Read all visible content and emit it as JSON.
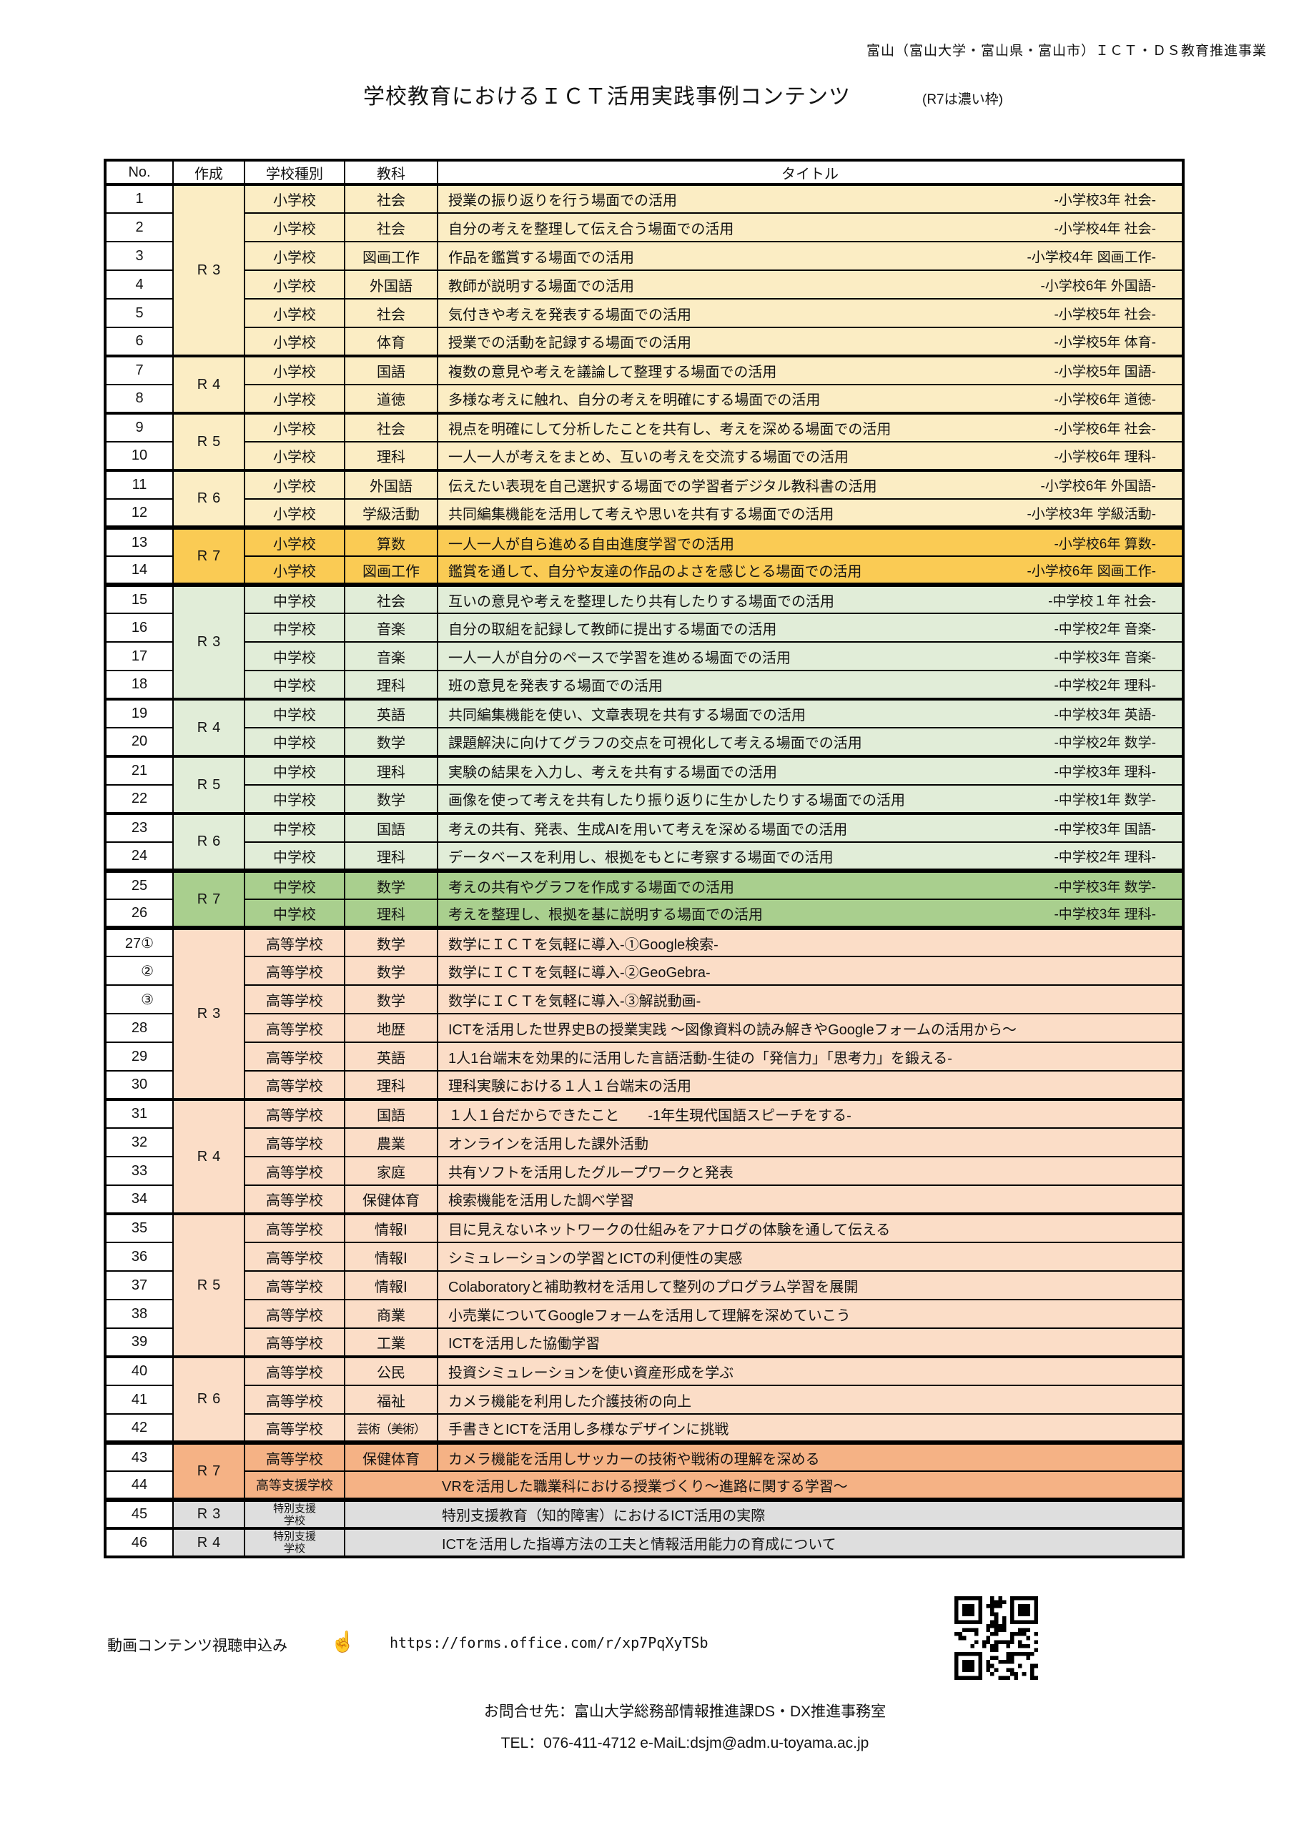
{
  "header": {
    "project": "富山（富山大学・富山県・富山市）ＩＣＴ・ＤＳ教育推進事業",
    "title": "学校教育におけるＩＣＴ活用実践事例コンテンツ",
    "note": "(R7は濃い枠)"
  },
  "palette": {
    "e1": "#FBEDC4",
    "e2": "#FACB54",
    "j1": "#E1EDD8",
    "j2": "#A9CF8E",
    "h1": "#FBDDC7",
    "h2": "#F5B285",
    "s1": "#DEDEDE",
    "border": "#000000",
    "text": "#141414"
  },
  "table": {
    "columns": [
      "No.",
      "作成",
      "学校種別",
      "教科",
      "タイトル"
    ],
    "rows": [
      {
        "no": "1",
        "era": "R3",
        "span": 6,
        "school": "小学校",
        "subject": "社会",
        "title": "授業の振り返りを行う場面での活用",
        "tag": "-小学校3年 社会-",
        "shade": "e1"
      },
      {
        "no": "2",
        "school": "小学校",
        "subject": "社会",
        "title": "自分の考えを整理して伝え合う場面での活用",
        "tag": "-小学校4年 社会-",
        "shade": "e1"
      },
      {
        "no": "3",
        "school": "小学校",
        "subject": "図画工作",
        "title": "作品を鑑賞する場面での活用",
        "tag": "-小学校4年 図画工作-",
        "shade": "e1"
      },
      {
        "no": "4",
        "school": "小学校",
        "subject": "外国語",
        "title": "教師が説明する場面での活用",
        "tag": "-小学校6年 外国語-",
        "shade": "e1"
      },
      {
        "no": "5",
        "school": "小学校",
        "subject": "社会",
        "title": "気付きや考えを発表する場面での活用",
        "tag": "-小学校5年 社会-",
        "shade": "e1"
      },
      {
        "no": "6",
        "school": "小学校",
        "subject": "体育",
        "title": "授業での活動を記録する場面での活用",
        "tag": "-小学校5年 体育-",
        "shade": "e1"
      },
      {
        "no": "7",
        "era": "R4",
        "span": 2,
        "school": "小学校",
        "subject": "国語",
        "title": "複数の意見や考えを議論して整理する場面での活用",
        "tag": "-小学校5年 国語-",
        "shade": "e1",
        "top": "g"
      },
      {
        "no": "8",
        "school": "小学校",
        "subject": "道徳",
        "title": "多様な考えに触れ、自分の考えを明確にする場面での活用",
        "tag": "-小学校6年 道徳-",
        "shade": "e1"
      },
      {
        "no": "9",
        "era": "R5",
        "span": 2,
        "school": "小学校",
        "subject": "社会",
        "title": "視点を明確にして分析したことを共有し、考えを深める場面での活用",
        "tag": "-小学校6年 社会-",
        "shade": "e1",
        "top": "g"
      },
      {
        "no": "10",
        "school": "小学校",
        "subject": "理科",
        "title": "一人一人が考えをまとめ、互いの考えを交流する場面での活用",
        "tag": "-小学校6年 理科-",
        "shade": "e1"
      },
      {
        "no": "11",
        "era": "R6",
        "span": 2,
        "school": "小学校",
        "subject": "外国語",
        "title": "伝えたい表現を自己選択する場面での学習者デジタル教科書の活用",
        "tag": "-小学校6年 外国語-",
        "shade": "e1",
        "top": "g"
      },
      {
        "no": "12",
        "school": "小学校",
        "subject": "学級活動",
        "title": "共同編集機能を活用して考えや思いを共有する場面での活用",
        "tag": "-小学校3年 学級活動-",
        "shade": "e1"
      },
      {
        "no": "13",
        "era": "R7",
        "span": 2,
        "school": "小学校",
        "subject": "算数",
        "title": "一人一人が自ら進める自由進度学習での活用",
        "tag": "-小学校6年 算数-",
        "shade": "e2",
        "top": "G"
      },
      {
        "no": "14",
        "school": "小学校",
        "subject": "図画工作",
        "title": "鑑賞を通して、自分や友達の作品のよさを感じとる場面での活用",
        "tag": "-小学校6年 図画工作-",
        "shade": "e2"
      },
      {
        "no": "15",
        "era": "R3",
        "span": 4,
        "school": "中学校",
        "subject": "社会",
        "title": "互いの意見や考えを整理したり共有したりする場面での活用",
        "tag": "-中学校１年 社会-",
        "shade": "j1",
        "top": "G"
      },
      {
        "no": "16",
        "school": "中学校",
        "subject": "音楽",
        "title": "自分の取組を記録して教師に提出する場面での活用",
        "tag": "-中学校2年 音楽-",
        "shade": "j1"
      },
      {
        "no": "17",
        "school": "中学校",
        "subject": "音楽",
        "title": "一人一人が自分のペースで学習を進める場面での活用",
        "tag": "-中学校3年 音楽-",
        "shade": "j1"
      },
      {
        "no": "18",
        "school": "中学校",
        "subject": "理科",
        "title": "班の意見を発表する場面での活用",
        "tag": "-中学校2年 理科-",
        "shade": "j1"
      },
      {
        "no": "19",
        "era": "R4",
        "span": 2,
        "school": "中学校",
        "subject": "英語",
        "title": "共同編集機能を使い、文章表現を共有する場面での活用",
        "tag": "-中学校3年 英語-",
        "shade": "j1",
        "top": "g"
      },
      {
        "no": "20",
        "school": "中学校",
        "subject": "数学",
        "title": "課題解決に向けてグラフの交点を可視化して考える場面での活用",
        "tag": "-中学校2年 数学-",
        "shade": "j1"
      },
      {
        "no": "21",
        "era": "R5",
        "span": 2,
        "school": "中学校",
        "subject": "理科",
        "title": "実験の結果を入力し、考えを共有する場面での活用",
        "tag": "-中学校3年 理科-",
        "shade": "j1",
        "top": "g"
      },
      {
        "no": "22",
        "school": "中学校",
        "subject": "数学",
        "title": "画像を使って考えを共有したり振り返りに生かしたりする場面での活用",
        "tag": "-中学校1年 数学-",
        "shade": "j1"
      },
      {
        "no": "23",
        "era": "R6",
        "span": 2,
        "school": "中学校",
        "subject": "国語",
        "title": "考えの共有、発表、生成AIを用いて考えを深める場面での活用",
        "tag": "-中学校3年 国語-",
        "shade": "j1",
        "top": "g"
      },
      {
        "no": "24",
        "school": "中学校",
        "subject": "理科",
        "title": "データベースを利用し、根拠をもとに考察する場面での活用",
        "tag": "-中学校2年 理科-",
        "shade": "j1"
      },
      {
        "no": "25",
        "era": "R7",
        "span": 2,
        "school": "中学校",
        "subject": "数学",
        "title": "考えの共有やグラフを作成する場面での活用",
        "tag": "-中学校3年 数学-",
        "shade": "j2",
        "top": "G"
      },
      {
        "no": "26",
        "school": "中学校",
        "subject": "理科",
        "title": "考えを整理し、根拠を基に説明する場面での活用",
        "tag": "-中学校3年 理科-",
        "shade": "j2"
      },
      {
        "no": "27①",
        "era": "R3",
        "span": 6,
        "school": "高等学校",
        "subject": "数学",
        "title": "数学にＩＣＴを気軽に導入-①Google検索-",
        "shade": "h1",
        "top": "G"
      },
      {
        "no": "②",
        "noAlign": "r",
        "school": "高等学校",
        "subject": "数学",
        "title": "数学にＩＣＴを気軽に導入-②GeoGebra-",
        "shade": "h1"
      },
      {
        "no": "③",
        "noAlign": "r",
        "school": "高等学校",
        "subject": "数学",
        "title": "数学にＩＣＴを気軽に導入-③解説動画-",
        "shade": "h1"
      },
      {
        "no": "28",
        "school": "高等学校",
        "subject": "地歴",
        "title": "ICTを活用した世界史Bの授業実践 ～図像資料の読み解きやGoogleフォームの活用から～",
        "shade": "h1"
      },
      {
        "no": "29",
        "school": "高等学校",
        "subject": "英語",
        "title": "1人1台端末を効果的に活用した言語活動-生徒の「発信力」「思考力」を鍛える-",
        "shade": "h1"
      },
      {
        "no": "30",
        "school": "高等学校",
        "subject": "理科",
        "title": "理科実験における１人１台端末の活用",
        "shade": "h1"
      },
      {
        "no": "31",
        "era": "R4",
        "span": 4,
        "school": "高等学校",
        "subject": "国語",
        "title": "１人１台だからできたこと　　-1年生現代国語スピーチをする-",
        "shade": "h1",
        "top": "g"
      },
      {
        "no": "32",
        "school": "高等学校",
        "subject": "農業",
        "title": "オンラインを活用した課外活動",
        "shade": "h1"
      },
      {
        "no": "33",
        "school": "高等学校",
        "subject": "家庭",
        "title": "共有ソフトを活用したグループワークと発表",
        "shade": "h1"
      },
      {
        "no": "34",
        "school": "高等学校",
        "subject": "保健体育",
        "title": "検索機能を活用した調べ学習",
        "shade": "h1"
      },
      {
        "no": "35",
        "era": "R5",
        "span": 5,
        "school": "高等学校",
        "subject": "情報Ⅰ",
        "title": "目に見えないネットワークの仕組みをアナログの体験を通して伝える",
        "shade": "h1",
        "top": "g"
      },
      {
        "no": "36",
        "school": "高等学校",
        "subject": "情報Ⅰ",
        "title": "シミュレーションの学習とICTの利便性の実感",
        "shade": "h1"
      },
      {
        "no": "37",
        "school": "高等学校",
        "subject": "情報Ⅰ",
        "title": "Colaboratoryと補助教材を活用して整列のプログラム学習を展開",
        "shade": "h1"
      },
      {
        "no": "38",
        "school": "高等学校",
        "subject": "商業",
        "title": "小売業についてGoogleフォームを活用して理解を深めていこう",
        "shade": "h1"
      },
      {
        "no": "39",
        "school": "高等学校",
        "subject": "工業",
        "title": "ICTを活用した協働学習",
        "shade": "h1"
      },
      {
        "no": "40",
        "era": "R6",
        "span": 3,
        "school": "高等学校",
        "subject": "公民",
        "title": "投資シミュレーションを使い資産形成を学ぶ",
        "shade": "h1",
        "top": "g"
      },
      {
        "no": "41",
        "school": "高等学校",
        "subject": "福祉",
        "title": "カメラ機能を利用した介護技術の向上",
        "shade": "h1"
      },
      {
        "no": "42",
        "school": "高等学校",
        "subject": "芸術（美術）",
        "fit": true,
        "title": "手書きとICTを活用し多様なデザインに挑戦",
        "shade": "h1"
      },
      {
        "no": "43",
        "era": "R7",
        "span": 2,
        "school": "高等学校",
        "subject": "保健体育",
        "title": "カメラ機能を活用しサッカーの技術や戦術の理解を深める",
        "shade": "h2",
        "top": "G"
      },
      {
        "no": "44",
        "school": "高等支援学校",
        "schoolMid": true,
        "merged": true,
        "title": "VRを活用した職業科における授業づくり～進路に関する学習～",
        "shade": "h2"
      },
      {
        "no": "45",
        "era": "R3",
        "span": 1,
        "school": "特別支援\n学校",
        "schoolSmall": true,
        "merged": true,
        "title": "特別支援教育（知的障害）におけるICT活用の実際",
        "shade": "s1",
        "top": "G"
      },
      {
        "no": "46",
        "era": "R4",
        "span": 1,
        "school": "特別支援\n学校",
        "schoolSmall": true,
        "merged": true,
        "title": "ICTを活用した指導方法の工夫と情報活用能力の育成について",
        "shade": "s1",
        "top": "g"
      }
    ]
  },
  "footer": {
    "apply_label": "動画コンテンツ視聴申込み",
    "hand_icon": "☝",
    "url": "https://forms.office.com/r/xp7PqXyTSb",
    "contact": "お問合せ先：富山大学総務部情報推進課DS・DX推進事務室",
    "tel": "TEL：076-411-4712  e-MaiL:dsjm@adm.u-toyama.ac.jp"
  }
}
